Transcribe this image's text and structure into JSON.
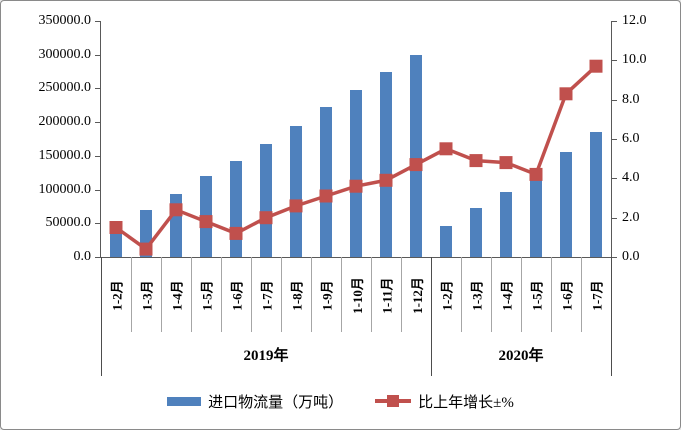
{
  "chart_data": {
    "type": "bar+line",
    "title": "",
    "grid": false,
    "legend_position": "bottom",
    "categories": [
      "1-2月",
      "1-3月",
      "1-4月",
      "1-5月",
      "1-6月",
      "1-7月",
      "1-8月",
      "1-9月",
      "1-10月",
      "1-11月",
      "1-12月",
      "1-2月",
      "1-3月",
      "1-4月",
      "1-5月",
      "1-6月",
      "1-7月"
    ],
    "groups": [
      {
        "label": "2019年",
        "count": 11
      },
      {
        "label": "2020年",
        "count": 6
      }
    ],
    "series": [
      {
        "name": "进口物流量（万吨）",
        "type": "bar",
        "axis": "left",
        "color": "#4f81bd",
        "values": [
          45000,
          70000,
          94000,
          120000,
          142000,
          167000,
          195000,
          222000,
          248000,
          275000,
          300000,
          46000,
          72000,
          97000,
          116000,
          155000,
          186000
        ]
      },
      {
        "name": "比上年增长±%",
        "type": "line",
        "axis": "right",
        "color": "#c0504d",
        "values": [
          1.5,
          0.4,
          2.4,
          1.8,
          1.2,
          2.0,
          2.6,
          3.1,
          3.6,
          3.9,
          4.7,
          5.5,
          4.9,
          4.8,
          4.2,
          8.3,
          9.7
        ]
      }
    ],
    "left_axis": {
      "min": 0,
      "max": 350000,
      "step": 50000,
      "tick_labels": [
        "0.0",
        "50000.0",
        "100000.0",
        "150000.0",
        "200000.0",
        "250000.0",
        "300000.0",
        "350000.0"
      ]
    },
    "right_axis": {
      "min": 0,
      "max": 12,
      "step": 2,
      "tick_labels": [
        "0.0",
        "2.0",
        "4.0",
        "6.0",
        "8.0",
        "10.0",
        "12.0"
      ]
    }
  },
  "colors": {
    "bar": "#4f81bd",
    "line": "#c0504d",
    "axis": "#595959",
    "category_separator": "#a6a6a6",
    "group_boundary": "#4d4d4d",
    "frame_border": "#8a8a8a",
    "background": "#ffffff"
  }
}
